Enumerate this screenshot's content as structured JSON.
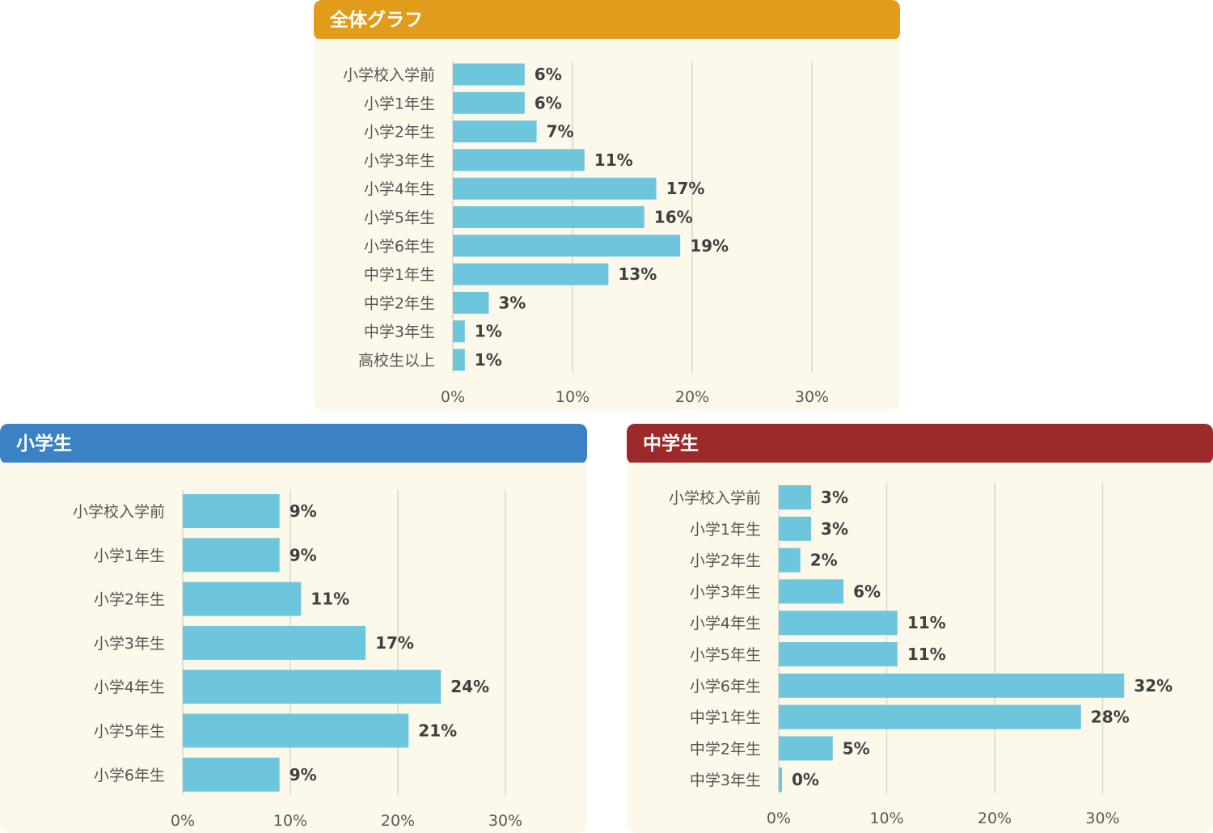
{
  "colors": {
    "bar": "#6ec6dc",
    "grid": "#d9d6cc",
    "header_all": "#e09c1a",
    "header_elementary": "#3a82c4",
    "header_junior": "#9c2a2b",
    "panel_bg": "#fcf9eb"
  },
  "chart_data": [
    {
      "type": "bar",
      "orientation": "horizontal",
      "title": "全体グラフ",
      "categories": [
        "小学校入学前",
        "小学1年生",
        "小学2年生",
        "小学3年生",
        "小学4年生",
        "小学5年生",
        "小学6年生",
        "中学1年生",
        "中学2年生",
        "中学3年生",
        "高校生以上"
      ],
      "values": [
        6,
        6,
        7,
        11,
        17,
        16,
        19,
        13,
        3,
        1,
        1
      ],
      "value_labels": [
        "6%",
        "6%",
        "7%",
        "11%",
        "17%",
        "16%",
        "19%",
        "13%",
        "3%",
        "1%",
        "1%"
      ],
      "xlim": [
        0,
        35
      ],
      "x_ticks": [
        0,
        10,
        20,
        30
      ],
      "x_tick_labels": [
        "0%",
        "10%",
        "20%",
        "30%"
      ],
      "grid": true
    },
    {
      "type": "bar",
      "orientation": "horizontal",
      "title": "小学生",
      "categories": [
        "小学校入学前",
        "小学1年生",
        "小学2年生",
        "小学3年生",
        "小学4年生",
        "小学5年生",
        "小学6年生"
      ],
      "values": [
        9,
        9,
        11,
        17,
        24,
        21,
        9
      ],
      "value_labels": [
        "9%",
        "9%",
        "11%",
        "17%",
        "24%",
        "21%",
        "9%"
      ],
      "xlim": [
        0,
        35
      ],
      "x_ticks": [
        0,
        10,
        20,
        30
      ],
      "x_tick_labels": [
        "0%",
        "10%",
        "20%",
        "30%"
      ],
      "grid": true
    },
    {
      "type": "bar",
      "orientation": "horizontal",
      "title": "中学生",
      "categories": [
        "小学校入学前",
        "小学1年生",
        "小学2年生",
        "小学3年生",
        "小学4年生",
        "小学5年生",
        "小学6年生",
        "中学1年生",
        "中学2年生",
        "中学3年生"
      ],
      "values": [
        3,
        3,
        2,
        6,
        11,
        11,
        32,
        28,
        5,
        0.3
      ],
      "value_labels": [
        "3%",
        "3%",
        "2%",
        "6%",
        "11%",
        "11%",
        "32%",
        "28%",
        "5%",
        "0%"
      ],
      "xlim": [
        0,
        35
      ],
      "x_ticks": [
        0,
        10,
        20,
        30
      ],
      "x_tick_labels": [
        "0%",
        "10%",
        "20%",
        "30%"
      ],
      "grid": true
    }
  ]
}
